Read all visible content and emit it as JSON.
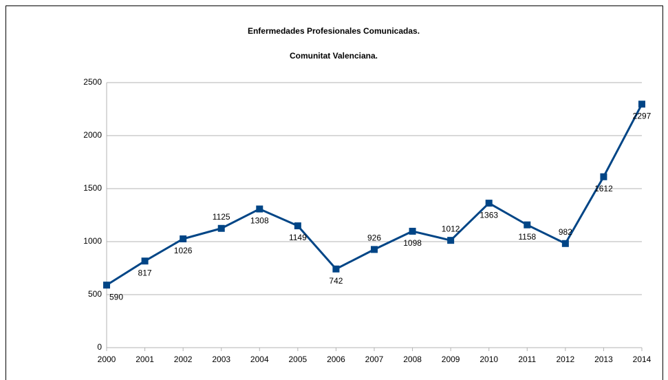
{
  "chart_data": {
    "type": "line",
    "title": "Enfermedades Profesionales Comunicadas.",
    "subtitle": "Comunitat Valenciana.",
    "categories": [
      "2000",
      "2001",
      "2002",
      "2003",
      "2004",
      "2005",
      "2006",
      "2007",
      "2008",
      "2009",
      "2010",
      "2011",
      "2012",
      "2013",
      "2014"
    ],
    "series": [
      {
        "name": "Enfermedades",
        "color": "#004586",
        "values": [
          590,
          817,
          1026,
          1125,
          1308,
          1149,
          742,
          926,
          1098,
          1012,
          1363,
          1158,
          982,
          1612,
          2297
        ]
      }
    ],
    "ylim": [
      0,
      2500
    ],
    "yticks": [
      0,
      500,
      1000,
      1500,
      2000,
      2500
    ],
    "grid": true
  }
}
